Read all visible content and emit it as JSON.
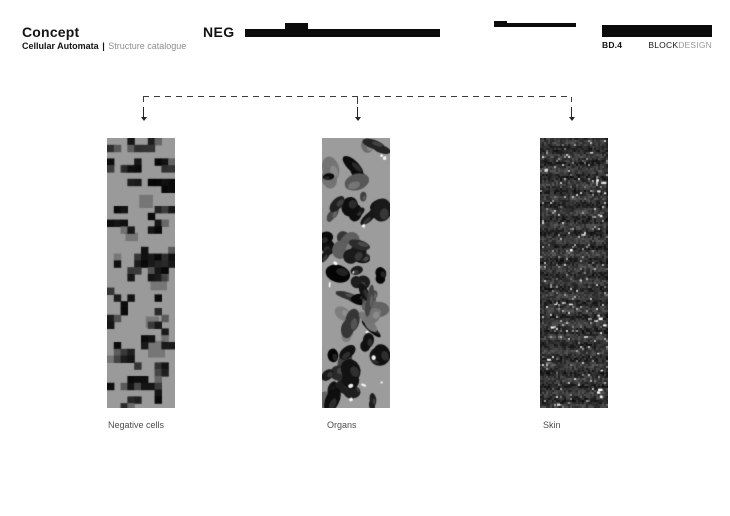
{
  "header": {
    "title": "Concept",
    "subtitle": {
      "bold": "Cellular Automata",
      "separator": "|",
      "light": "Structure catalogue"
    },
    "neg_label": "NEG",
    "sheet_code": "BD.4",
    "brand": {
      "bold": "BLOCK",
      "light": "DESIGN"
    }
  },
  "diagram": {
    "connector_style": "dashed-bracket",
    "arrow_count": 3
  },
  "figures": [
    {
      "label": "Negative cells",
      "texture": "pixel-grid"
    },
    {
      "label": "Organs",
      "texture": "organic-blobs"
    },
    {
      "label": "Skin",
      "texture": "dense-noise"
    }
  ],
  "colors": {
    "background": "#ffffff",
    "ink": "#0b0b0b",
    "muted_text": "#8f8f8f",
    "strip_background": "#9a9a9a",
    "connector": "#3c3c3c"
  }
}
